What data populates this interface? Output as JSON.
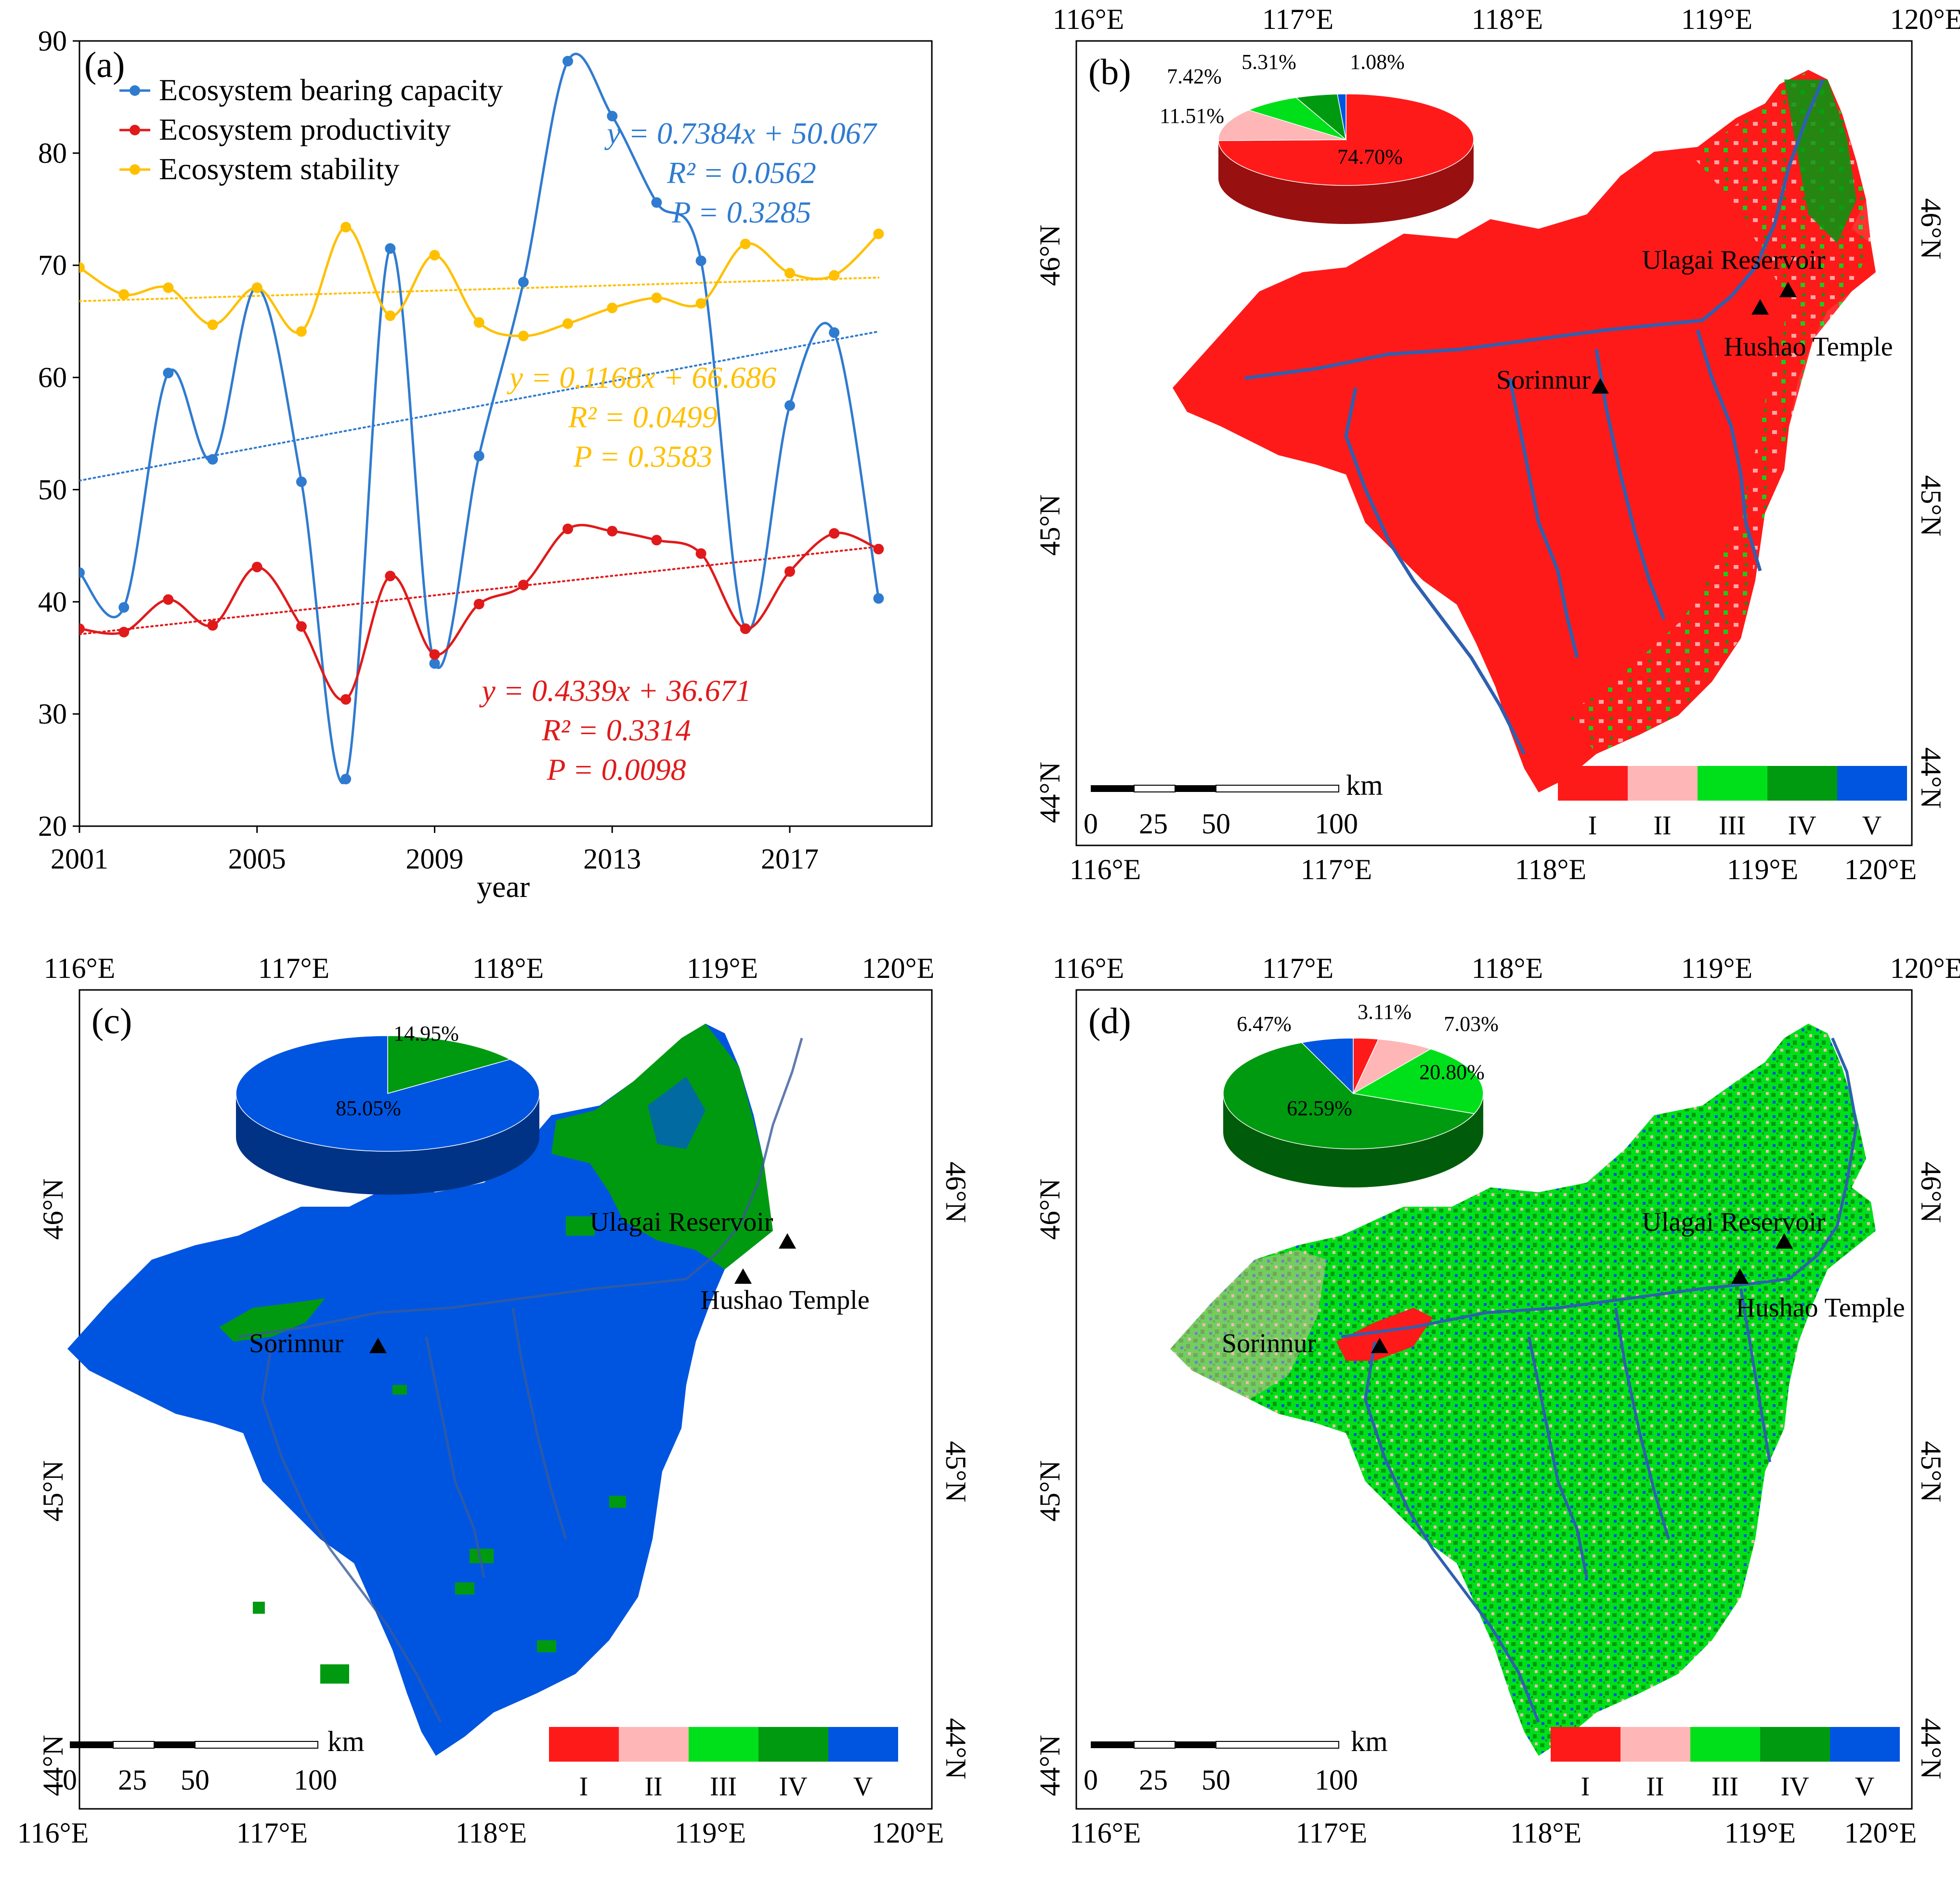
{
  "colors": {
    "bearing": "#2f7bd0",
    "productivity": "#e01a1a",
    "stability": "#ffc000",
    "class_I": "#ff1a1a",
    "class_II": "#ffb6b6",
    "class_III": "#00e01a",
    "class_IV": "#009a10",
    "class_V": "#0055e0"
  },
  "panel_a": {
    "label": "(a)",
    "legend": [
      "Ecosystem bearing capacity",
      "Ecosystem productivity",
      "Ecosystem stability"
    ],
    "eq_bearing": [
      "y = 0.7384x + 50.067",
      "R² = 0.0562",
      "P = 0.3285"
    ],
    "eq_stability": [
      "y = 0.1168x + 66.686",
      "R² = 0.0499",
      "P = 0.3583"
    ],
    "eq_productivity": [
      "y = 0.4339x + 36.671",
      "R² = 0.3314",
      "P = 0.0098"
    ]
  },
  "chart_data": [
    {
      "type": "line",
      "title": "",
      "xlabel": "year",
      "ylabel": "",
      "x": [
        2001,
        2002,
        2003,
        2004,
        2005,
        2006,
        2007,
        2008,
        2009,
        2010,
        2011,
        2012,
        2013,
        2014,
        2015,
        2016,
        2017,
        2018,
        2019
      ],
      "x_ticks": [
        "2001",
        "2005",
        "2009",
        "2013",
        "2017"
      ],
      "y_ticks": [
        "20",
        "30",
        "40",
        "50",
        "60",
        "70",
        "80",
        "90"
      ],
      "ylim": [
        20,
        90
      ],
      "series": [
        {
          "name": "Ecosystem bearing capacity",
          "values": [
            42.6,
            39.5,
            60.4,
            52.7,
            68.0,
            50.7,
            24.2,
            71.5,
            34.5,
            53.0,
            68.5,
            88.2,
            83.3,
            75.6,
            70.4,
            37.6,
            57.5,
            64.0,
            40.3
          ],
          "trend": [
            0.7384,
            50.067
          ]
        },
        {
          "name": "Ecosystem productivity",
          "values": [
            37.6,
            37.3,
            40.2,
            37.9,
            43.1,
            37.8,
            31.3,
            42.3,
            35.3,
            39.8,
            41.5,
            46.5,
            46.3,
            45.5,
            44.3,
            37.6,
            42.7,
            46.1,
            44.7
          ],
          "trend": [
            0.4339,
            36.671
          ]
        },
        {
          "name": "Ecosystem stability",
          "values": [
            69.8,
            67.4,
            68.0,
            64.7,
            68.0,
            64.1,
            73.4,
            65.5,
            70.9,
            64.9,
            63.7,
            64.8,
            66.2,
            67.1,
            66.6,
            71.9,
            69.3,
            69.1,
            72.8
          ],
          "trend": [
            0.1168,
            66.686
          ]
        }
      ]
    },
    {
      "type": "pie",
      "title": "(b)",
      "labels": [
        "I",
        "II",
        "III",
        "IV",
        "V"
      ],
      "values": [
        74.7,
        11.51,
        7.42,
        5.31,
        1.08
      ],
      "value_labels": [
        "74.70%",
        "11.51%",
        "7.42%",
        "5.31%",
        "1.08%"
      ]
    },
    {
      "type": "pie",
      "title": "(c)",
      "labels": [
        "I",
        "II",
        "III",
        "IV",
        "V"
      ],
      "values": [
        0,
        0,
        0,
        14.95,
        85.05
      ],
      "value_labels": [
        "",
        "",
        "",
        "14.95%",
        "85.05%"
      ]
    },
    {
      "type": "pie",
      "title": "(d)",
      "labels": [
        "I",
        "II",
        "III",
        "IV",
        "V"
      ],
      "values": [
        3.11,
        7.03,
        20.8,
        62.59,
        6.47
      ],
      "value_labels": [
        "3.11%",
        "7.03%",
        "20.80%",
        "62.59%",
        "6.47%"
      ]
    }
  ],
  "maps": {
    "lon_labels": [
      "116°E",
      "117°E",
      "118°E",
      "119°E",
      "120°E"
    ],
    "lat_labels": [
      "44°N",
      "45°N",
      "46°N"
    ],
    "places": [
      "Sorinnur",
      "Ulagai Reservoir",
      "Hushao Temple"
    ],
    "scale_labels": [
      "0",
      "25",
      "50",
      "100"
    ],
    "scale_unit": "km",
    "legend_classes": [
      "I",
      "II",
      "III",
      "IV",
      "V"
    ],
    "panel_labels": [
      "(b)",
      "(c)",
      "(d)"
    ]
  }
}
